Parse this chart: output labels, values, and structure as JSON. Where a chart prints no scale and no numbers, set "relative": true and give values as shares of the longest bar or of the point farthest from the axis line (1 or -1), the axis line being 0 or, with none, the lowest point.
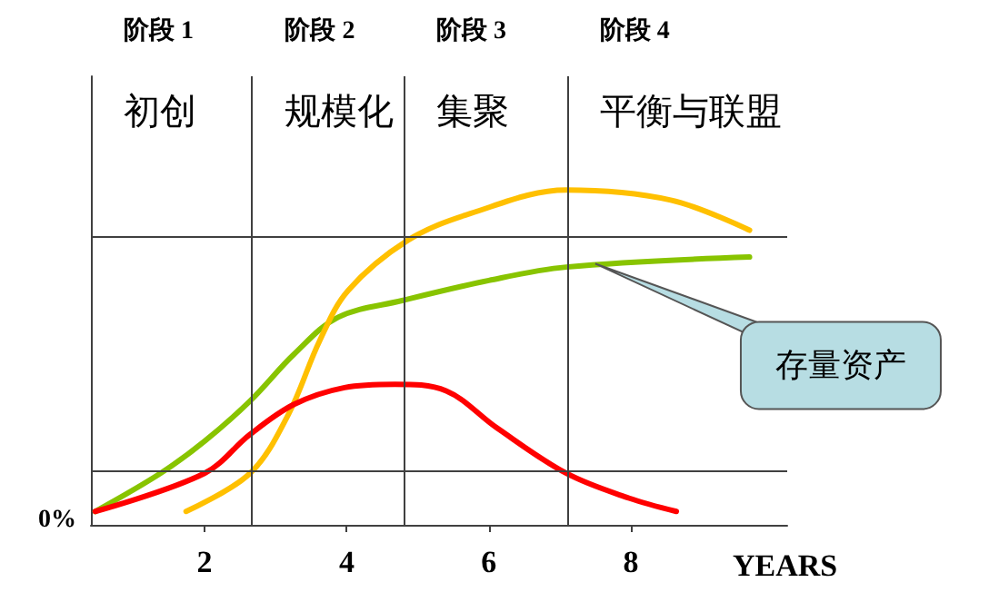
{
  "chart_data": {
    "type": "line",
    "relative": true,
    "xlabel": "YEARS",
    "xlim": [
      0.4,
      10.2
    ],
    "xticks": [
      2,
      4,
      6,
      8
    ],
    "grid": false,
    "marker": "none",
    "line_style": "solid",
    "series": [
      {
        "color": "#88c400",
        "x": [
          0.46,
          1.38,
          2.0,
          2.64,
          3.26,
          3.88,
          4.78,
          6.0,
          7.09,
          9.67
        ],
        "values": [
          0.04,
          0.154,
          0.25,
          0.37,
          0.51,
          0.62,
          0.67,
          0.73,
          0.77,
          0.8
        ]
      },
      {
        "color": "#ffc000",
        "x": [
          1.74,
          2.64,
          3.18,
          3.62,
          4.02,
          4.86,
          5.74,
          7.09,
          8.56,
          9.67
        ],
        "values": [
          0.04,
          0.154,
          0.33,
          0.55,
          0.7,
          0.85,
          0.93,
          1,
          0.97,
          0.88
        ]
      },
      {
        "color": "#ff0000",
        "x": [
          0.46,
          2.0,
          2.64,
          3.26,
          3.97,
          4.68,
          5.4,
          6.11,
          7.09,
          7.97,
          8.64
        ],
        "values": [
          0.04,
          0.154,
          0.27,
          0.36,
          0.41,
          0.42,
          0.4,
          0.29,
          0.154,
          0.08,
          0.04
        ]
      }
    ],
    "ref_lines": [
      {
        "axis": "x",
        "value": 2.67,
        "color": "#404040"
      },
      {
        "axis": "x",
        "value": 4.8,
        "color": "#404040"
      },
      {
        "axis": "x",
        "value": 7.1,
        "color": "#404040"
      },
      {
        "axis": "y",
        "value": 0.864,
        "color": "#404040"
      },
      {
        "axis": "y",
        "value": 0.163,
        "color": "#404040"
      }
    ],
    "annotations": [
      "阶段 1",
      "阶段 2",
      "阶段 3",
      "阶段 4",
      "初创",
      "规模化",
      "集聚",
      "平衡与联盟",
      "0%",
      {
        "text": "存量资产",
        "x": 7.5,
        "y": 0.78
      }
    ]
  }
}
